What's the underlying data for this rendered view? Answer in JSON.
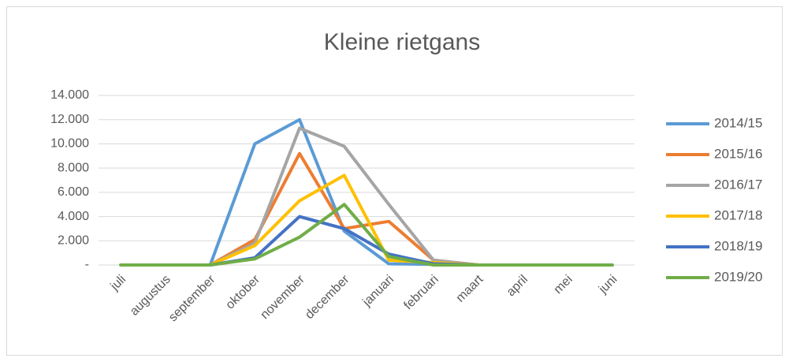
{
  "chart_data": {
    "type": "line",
    "title": "Kleine rietgans",
    "categories": [
      "juli",
      "augustus",
      "september",
      "oktober",
      "november",
      "december",
      "januari",
      "februari",
      "maart",
      "april",
      "mei",
      "juni"
    ],
    "series": [
      {
        "name": "2014/15",
        "color": "#5b9bd5",
        "values": [
          0,
          0,
          0,
          10000,
          12000,
          2800,
          100,
          50,
          0,
          0,
          0,
          0
        ]
      },
      {
        "name": "2015/16",
        "color": "#ed7d31",
        "values": [
          0,
          0,
          0,
          2100,
          9200,
          3000,
          3600,
          400,
          0,
          0,
          0,
          0
        ]
      },
      {
        "name": "2016/17",
        "color": "#a5a5a5",
        "values": [
          0,
          0,
          0,
          1800,
          11300,
          9800,
          5000,
          400,
          0,
          0,
          0,
          0
        ]
      },
      {
        "name": "2017/18",
        "color": "#ffc000",
        "values": [
          0,
          0,
          0,
          1600,
          5300,
          7400,
          400,
          200,
          0,
          0,
          0,
          0
        ]
      },
      {
        "name": "2018/19",
        "color": "#4472c4",
        "values": [
          0,
          0,
          0,
          600,
          4000,
          3000,
          900,
          100,
          0,
          0,
          0,
          0
        ]
      },
      {
        "name": "2019/20",
        "color": "#70ad47",
        "values": [
          0,
          0,
          0,
          500,
          2300,
          5000,
          700,
          0,
          0,
          0,
          0,
          0
        ]
      }
    ],
    "ylim": [
      0,
      14000
    ],
    "yticks": [
      {
        "value": 0,
        "label": "-"
      },
      {
        "value": 2000,
        "label": "2.000"
      },
      {
        "value": 4000,
        "label": "4.000"
      },
      {
        "value": 6000,
        "label": "6.000"
      },
      {
        "value": 8000,
        "label": "8.000"
      },
      {
        "value": 10000,
        "label": "10.000"
      },
      {
        "value": 12000,
        "label": "12.000"
      },
      {
        "value": 14000,
        "label": "14.000"
      }
    ],
    "grid": true,
    "legend": "right"
  }
}
